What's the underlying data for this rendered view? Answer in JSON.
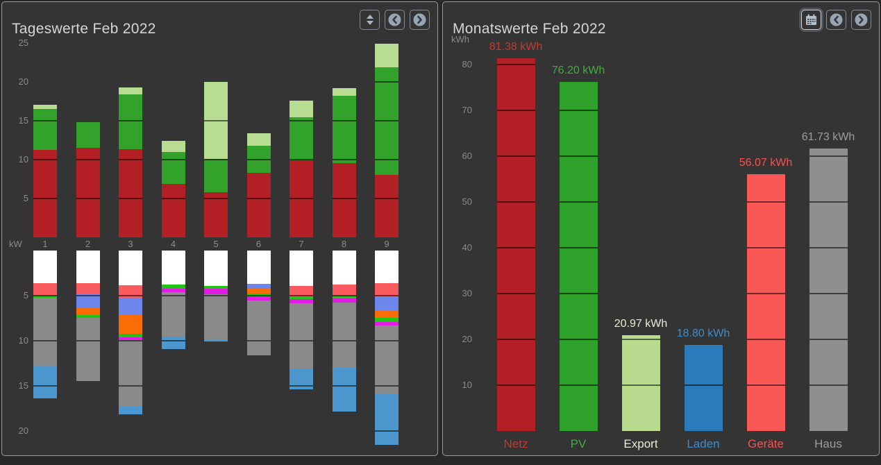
{
  "left_panel": {
    "title": "Tageswerte Feb 2022",
    "buttons": {
      "resize": "up-down-arrows",
      "prev": "chevron-left-circle",
      "next": "chevron-right-circle"
    }
  },
  "right_panel": {
    "title": "Monatswerte Feb 2022",
    "buttons": {
      "calendar": "calendar",
      "prev": "chevron-left-circle",
      "next": "chevron-right-circle"
    },
    "calendar_button_active": true
  },
  "colors": {
    "page_bg": "#282828",
    "panel_bg": "#343434",
    "panel_border": "#9b9b9b",
    "title_text": "#d6d6d6",
    "axis_text": "#8c8c8c",
    "grid_over_bar": "rgba(0,0,0,0.55)"
  },
  "chart_data": [
    {
      "type": "bar",
      "variant": "diverging-stacked",
      "title": "Tageswerte Feb 2022",
      "unit": "kW",
      "categories": [
        "1",
        "2",
        "3",
        "4",
        "5",
        "6",
        "7",
        "8",
        "9"
      ],
      "up_axis_ticks": [
        5,
        10,
        15,
        20,
        25
      ],
      "down_axis_ticks": [
        5,
        10,
        15,
        20
      ],
      "grid_step": 5,
      "legend_position": "none",
      "up_series": [
        {
          "name": "Netz",
          "color": "#b22025",
          "values": [
            11.3,
            11.5,
            11.4,
            6.95,
            5.8,
            8.35,
            9.9,
            9.55,
            8.05
          ]
        },
        {
          "name": "PV",
          "color": "#33a22b",
          "values": [
            5.25,
            3.35,
            7.0,
            4.1,
            4.35,
            3.5,
            5.55,
            8.65,
            13.8
          ]
        },
        {
          "name": "Export",
          "color": "#b7dc92",
          "values": [
            0.5,
            0.0,
            0.9,
            1.35,
            9.9,
            1.55,
            2.15,
            1.0,
            3.1
          ]
        }
      ],
      "down_segment_colors": {
        "white": "#ffffff",
        "rot": "#f95a5f",
        "lila": "#6c86ec",
        "orange": "#fc6c06",
        "gruen": "#21c414",
        "magenta": "#e51ae5",
        "grau": "#8a8a8a",
        "blau": "#4b97ce"
      },
      "down_stacks": [
        [
          [
            "white",
            3.6
          ],
          [
            "rot",
            1.35
          ],
          [
            "gruen",
            0.3
          ],
          [
            "grau",
            7.6
          ],
          [
            "blau",
            3.55
          ]
        ],
        [
          [
            "white",
            3.6
          ],
          [
            "rot",
            1.2
          ],
          [
            "lila",
            1.5
          ],
          [
            "orange",
            0.85
          ],
          [
            "gruen",
            0.35
          ],
          [
            "grau",
            7.0
          ]
        ],
        [
          [
            "white",
            3.85
          ],
          [
            "rot",
            1.4
          ],
          [
            "lila",
            1.8
          ],
          [
            "orange",
            2.2
          ],
          [
            "gruen",
            0.35
          ],
          [
            "magenta",
            0.35
          ],
          [
            "grau",
            7.4
          ],
          [
            "blau",
            0.8
          ]
        ],
        [
          [
            "white",
            3.8
          ],
          [
            "gruen",
            0.4
          ],
          [
            "magenta",
            0.4
          ],
          [
            "grau",
            4.95
          ],
          [
            "blau",
            1.4
          ]
        ],
        [
          [
            "white",
            3.9
          ],
          [
            "gruen",
            0.35
          ],
          [
            "magenta",
            0.6
          ],
          [
            "grau",
            5.1
          ],
          [
            "blau",
            0.15
          ]
        ],
        [
          [
            "white",
            3.7
          ],
          [
            "lila",
            0.55
          ],
          [
            "orange",
            0.5
          ],
          [
            "gruen",
            0.3
          ],
          [
            "magenta",
            0.45
          ],
          [
            "grau",
            6.1
          ]
        ],
        [
          [
            "white",
            3.9
          ],
          [
            "rot",
            1.25
          ],
          [
            "gruen",
            0.25
          ],
          [
            "magenta",
            0.45
          ],
          [
            "grau",
            7.25
          ],
          [
            "blau",
            2.3
          ]
        ],
        [
          [
            "white",
            3.8
          ],
          [
            "rot",
            1.2
          ],
          [
            "gruen",
            0.3
          ],
          [
            "magenta",
            0.5
          ],
          [
            "grau",
            7.2
          ],
          [
            "blau",
            4.9
          ]
        ],
        [
          [
            "white",
            3.6
          ],
          [
            "rot",
            1.55
          ],
          [
            "lila",
            1.45
          ],
          [
            "orange",
            0.9
          ],
          [
            "gruen",
            0.4
          ],
          [
            "magenta",
            0.45
          ],
          [
            "grau",
            7.5
          ],
          [
            "blau",
            5.75
          ]
        ]
      ]
    },
    {
      "type": "bar",
      "variant": "simple",
      "title": "Monatswerte Feb 2022",
      "unit": "kWh",
      "y_ticks": [
        10,
        20,
        30,
        40,
        50,
        60,
        70,
        80
      ],
      "grid_step": 10,
      "legend_position": "none",
      "bars": [
        {
          "label": "Netz",
          "value": 81.38,
          "value_label": "81.38 kWh",
          "bar_color": "#b22025",
          "text_color": "#c53a30"
        },
        {
          "label": "PV",
          "value": 76.2,
          "value_label": "76.20 kWh",
          "bar_color": "#2ea12b",
          "text_color": "#41ae41"
        },
        {
          "label": "Export",
          "value": 20.97,
          "value_label": "20.97 kWh",
          "bar_color": "#b9db90",
          "text_color": "#e8edda"
        },
        {
          "label": "Laden",
          "value": 18.8,
          "value_label": "18.80 kWh",
          "bar_color": "#2b7ab9",
          "text_color": "#3f8cc9"
        },
        {
          "label": "Geräte",
          "value": 56.07,
          "value_label": "56.07 kWh",
          "bar_color": "#fa5757",
          "text_color": "#f25454"
        },
        {
          "label": "Haus",
          "value": 61.73,
          "value_label": "61.73 kWh",
          "bar_color": "#8f8f8f",
          "text_color": "#9d9d9d"
        }
      ]
    }
  ]
}
